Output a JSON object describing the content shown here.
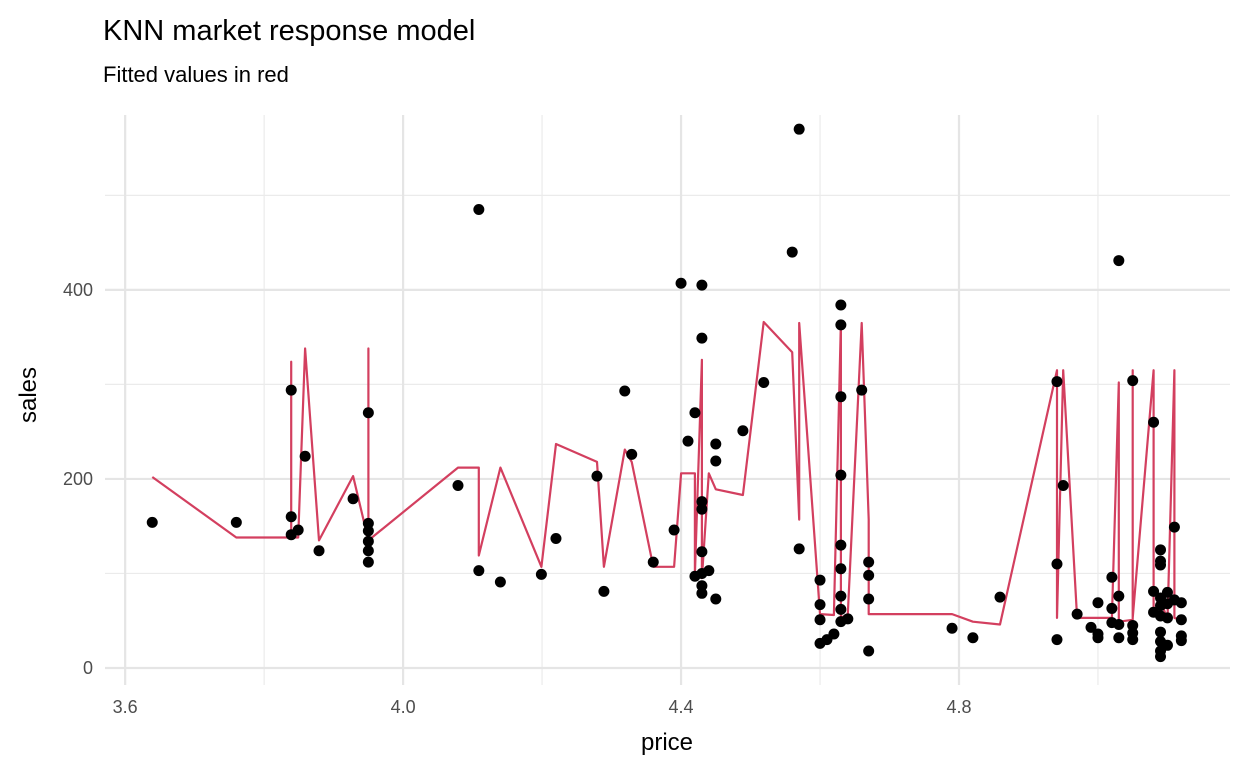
{
  "chart_data": {
    "type": "scatter_line",
    "title": "KNN market response model",
    "subtitle": "Fitted values in red",
    "x_label": "price",
    "y_label": "sales",
    "xlim": [
      3.571,
      5.19
    ],
    "ylim": [
      -18,
      585
    ],
    "xticks": [
      {
        "value": 3.6,
        "label": "3.6"
      },
      {
        "value": 4.0,
        "label": "4.0"
      },
      {
        "value": 4.4,
        "label": "4.4"
      },
      {
        "value": 4.8,
        "label": "4.8"
      }
    ],
    "yticks": [
      0,
      200,
      400
    ],
    "x_minor_grid": [
      3.8,
      4.2,
      4.6,
      5.0
    ],
    "y_minor_grid": [
      100,
      300,
      500
    ],
    "grid": true,
    "points": {
      "color": "#000000",
      "x": [
        3.639,
        3.76,
        3.839,
        3.839,
        3.839,
        3.849,
        3.859,
        3.879,
        3.928,
        3.95,
        3.95,
        3.95,
        3.95,
        3.95,
        3.95,
        4.079,
        4.109,
        4.109,
        4.14,
        4.199,
        4.22,
        4.279,
        4.289,
        4.319,
        4.329,
        4.36,
        4.39,
        4.4,
        4.41,
        4.42,
        4.42,
        4.43,
        4.43,
        4.43,
        4.43,
        4.43,
        4.43,
        4.43,
        4.43,
        4.44,
        4.45,
        4.45,
        4.45,
        4.489,
        4.519,
        4.56,
        4.57,
        4.57,
        4.6,
        4.6,
        4.6,
        4.6,
        4.61,
        4.62,
        4.63,
        4.63,
        4.63,
        4.63,
        4.63,
        4.63,
        4.63,
        4.63,
        4.63,
        4.64,
        4.66,
        4.67,
        4.67,
        4.67,
        4.67,
        4.79,
        4.82,
        4.859,
        4.941,
        4.941,
        4.941,
        4.95,
        4.97,
        4.99,
        5.0,
        5.0,
        5.0,
        5.02,
        5.02,
        5.02,
        5.03,
        5.03,
        5.03,
        5.03,
        5.05,
        5.05,
        5.05,
        5.05,
        5.08,
        5.08,
        5.08,
        5.09,
        5.09,
        5.09,
        5.09,
        5.09,
        5.09,
        5.09,
        5.09,
        5.09,
        5.09,
        5.1,
        5.1,
        5.1,
        5.1,
        5.11,
        5.11,
        5.12,
        5.12,
        5.12,
        5.12
      ],
      "y": [
        154,
        154,
        294,
        160,
        141,
        146,
        224,
        124,
        179,
        270,
        153,
        145,
        134,
        124,
        112,
        193,
        485,
        103,
        91,
        99,
        137,
        203,
        81,
        293,
        226,
        112,
        146,
        407,
        240,
        270,
        97,
        405,
        349,
        176,
        168,
        123,
        100,
        87,
        79,
        103,
        237,
        219,
        73,
        251,
        302,
        440,
        570,
        126,
        93,
        67,
        51,
        26,
        30,
        36,
        384,
        363,
        287,
        204,
        130,
        105,
        76,
        62,
        49,
        52,
        294,
        112,
        98,
        73,
        18,
        42,
        32,
        75,
        303,
        110,
        30,
        193,
        57,
        43,
        69,
        36,
        32,
        96,
        63,
        48,
        431,
        76,
        46,
        32,
        304,
        45,
        37,
        30,
        260,
        81,
        59,
        125,
        113,
        109,
        74,
        66,
        55,
        38,
        28,
        18,
        12,
        80,
        68,
        53,
        24,
        72,
        149,
        69,
        51,
        34,
        29
      ]
    },
    "fitted": {
      "color": "#d33f5f",
      "x": [
        3.639,
        3.76,
        3.839,
        3.839,
        3.839,
        3.849,
        3.859,
        3.879,
        3.928,
        3.95,
        3.95,
        3.95,
        4.079,
        4.109,
        4.109,
        4.14,
        4.199,
        4.22,
        4.279,
        4.289,
        4.319,
        4.329,
        4.36,
        4.39,
        4.4,
        4.42,
        4.42,
        4.43,
        4.43,
        4.44,
        4.45,
        4.489,
        4.519,
        4.56,
        4.57,
        4.57,
        4.6,
        4.62,
        4.63,
        4.63,
        4.64,
        4.66,
        4.67,
        4.67,
        4.79,
        4.82,
        4.859,
        4.941,
        4.941,
        4.95,
        4.97,
        5.02,
        5.03,
        5.03,
        5.05,
        5.05,
        5.05,
        5.08,
        5.08,
        5.09,
        5.1,
        5.11,
        5.11,
        5.12
      ],
      "y": [
        202,
        138,
        138,
        324,
        138,
        138,
        338,
        135,
        203,
        135,
        338,
        135,
        212,
        212,
        119,
        212,
        107,
        237,
        218,
        107,
        231,
        218,
        107,
        107,
        206,
        206,
        99,
        326,
        95,
        206,
        189,
        183,
        366,
        334,
        157,
        365,
        57,
        56,
        366,
        53,
        57,
        365,
        157,
        57,
        57,
        49,
        46,
        315,
        53,
        315,
        53,
        53,
        302,
        49,
        51,
        315,
        53,
        315,
        57,
        72,
        51,
        315,
        53,
        51
      ]
    }
  }
}
